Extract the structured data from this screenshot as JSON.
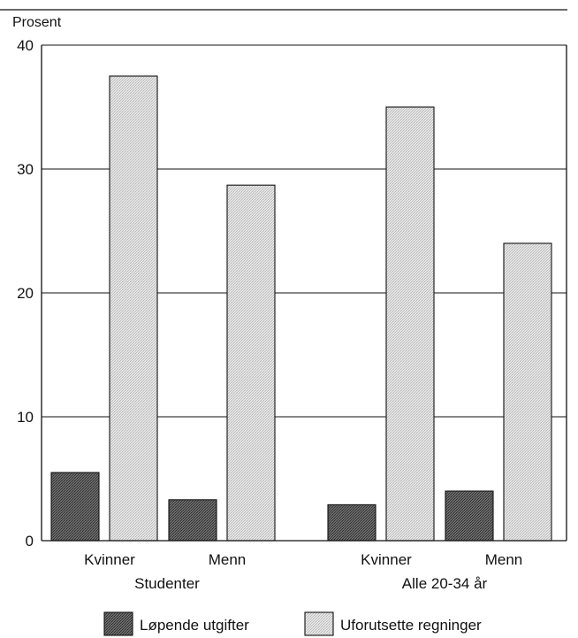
{
  "chart_data": {
    "type": "bar",
    "ylabel": "Prosent",
    "ylim": [
      0,
      40
    ],
    "yticks": [
      0,
      10,
      20,
      30,
      40
    ],
    "grid": true,
    "legend_position": "bottom",
    "categories": [
      "Kvinner",
      "Menn",
      "Kvinner",
      "Menn"
    ],
    "groups": [
      {
        "label": "Studenter",
        "categories": [
          "Kvinner",
          "Menn"
        ]
      },
      {
        "label": "Alle 20-34 år",
        "categories": [
          "Kvinner",
          "Menn"
        ]
      }
    ],
    "series": [
      {
        "name": "Løpende utgifter",
        "values": [
          5.5,
          3.3,
          2.9,
          4.0
        ],
        "color": "#5a5a5a"
      },
      {
        "name": "Uforutsette regninger",
        "values": [
          37.5,
          28.7,
          35.0,
          24.0
        ],
        "color": "#d9d9d9"
      }
    ]
  }
}
